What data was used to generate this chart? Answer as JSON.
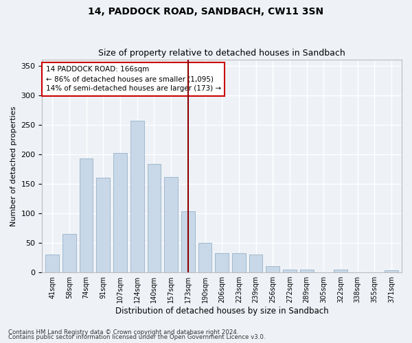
{
  "title1": "14, PADDOCK ROAD, SANDBACH, CW11 3SN",
  "title2": "Size of property relative to detached houses in Sandbach",
  "xlabel": "Distribution of detached houses by size in Sandbach",
  "ylabel": "Number of detached properties",
  "categories": [
    "41sqm",
    "58sqm",
    "74sqm",
    "91sqm",
    "107sqm",
    "124sqm",
    "140sqm",
    "157sqm",
    "173sqm",
    "190sqm",
    "206sqm",
    "223sqm",
    "239sqm",
    "256sqm",
    "272sqm",
    "289sqm",
    "305sqm",
    "322sqm",
    "338sqm",
    "355sqm",
    "371sqm"
  ],
  "values": [
    30,
    65,
    193,
    160,
    202,
    257,
    184,
    162,
    103,
    50,
    33,
    33,
    30,
    10,
    5,
    5,
    0,
    5,
    0,
    0,
    3
  ],
  "bar_color": "#c8d8e8",
  "bar_edge_color": "#a0b8cc",
  "vline_x_index": 8,
  "vline_color": "#8b0000",
  "annotation_line1": "14 PADDOCK ROAD: 166sqm",
  "annotation_line2": "← 86% of detached houses are smaller (1,095)",
  "annotation_line3": "14% of semi-detached houses are larger (173) →",
  "annotation_box_color": "#ffffff",
  "annotation_box_edge": "#cc0000",
  "ylim": [
    0,
    360
  ],
  "yticks": [
    0,
    50,
    100,
    150,
    200,
    250,
    300,
    350
  ],
  "bg_color": "#eef2f7",
  "grid_color": "#ffffff",
  "footer1": "Contains HM Land Registry data © Crown copyright and database right 2024.",
  "footer2": "Contains public sector information licensed under the Open Government Licence v3.0.",
  "title1_fontsize": 10,
  "title2_fontsize": 9,
  "bar_width": 0.8
}
